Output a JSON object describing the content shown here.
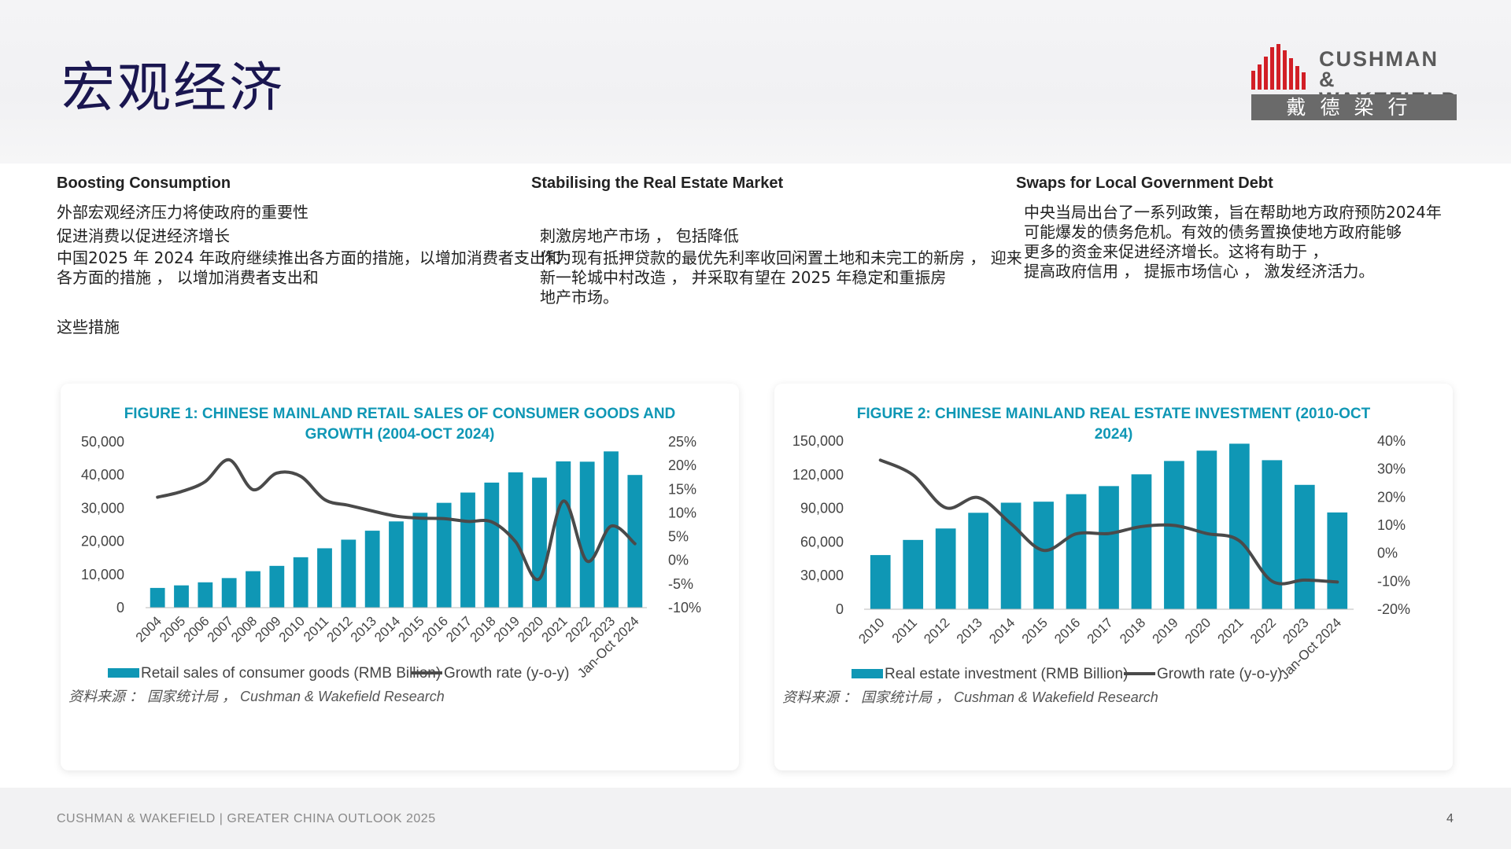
{
  "page": {
    "title": "宏观经济",
    "logo": {
      "line1": "CUSHMAN &",
      "line2": "WAKEFIELD",
      "chinese": "戴德梁行"
    },
    "footer": "CUSHMAN & WAKEFIELD | GREATER CHINA OUTLOOK 2025",
    "page_number": "4"
  },
  "columns": [
    {
      "title": "Boosting Consumption",
      "lines": [
        "外部宏观经济压力将使政府的重要性",
        " 促进消费以促进经济增长",
        "中国2025 年 2024 年政府继续推出各方面的措施，以增加消费者支出和",
        " 各方面的措施 ， 以增加消费者支出和",
        "这些措施"
      ]
    },
    {
      "title": "Stabilising the Real Estate Market",
      "lines": [
        "刺激房地产市场 ， 包括降低",
        "作为现有抵押贷款的最优先利率收回闲置土地和未完工的新房 ， 迎来",
        "新一轮城中村改造 ， 并采取有望在 2025 年稳定和重振房",
        "地产市场。"
      ]
    },
    {
      "title": "Swaps for Local Government Debt",
      "lines": [
        "中央当局出台了一系列政策，旨在帮助地方政府预防2024年",
        "可能爆发的债务危机。有效的债务置换使地方政府能够",
        "更多的资金来促进经济增长。这将有助于 ，",
        "提高政府信用 ， 提振市场信心 ， 激发经济活力。"
      ]
    }
  ],
  "colors": {
    "bar": "#0f97b5",
    "line": "#4a4a4a",
    "title": "#0f97b5",
    "heading": "#1a1650"
  },
  "chart_data": [
    {
      "type": "bar",
      "title_line1": "FIGURE 1: CHINESE MAINLAND RETAIL SALES OF CONSUMER GOODS AND",
      "title_line2": "GROWTH (2004-OCT 2024)",
      "categories": [
        "2004",
        "2005",
        "2006",
        "2007",
        "2008",
        "2009",
        "2010",
        "2011",
        "2012",
        "2013",
        "2014",
        "2015",
        "2016",
        "2017",
        "2018",
        "2019",
        "2020",
        "2021",
        "2022",
        "2023",
        "Jan-Oct 2024"
      ],
      "series": [
        {
          "name": "Retail sales of consumer goods (RMB Billion)",
          "kind": "bar",
          "axis": "left",
          "values": [
            5950,
            6720,
            7640,
            8920,
            11000,
            12600,
            15200,
            17900,
            20500,
            23200,
            26000,
            28600,
            31600,
            34700,
            37700,
            40800,
            39200,
            44100,
            44000,
            47100,
            40000
          ]
        },
        {
          "name": "Growth rate (y-o-y)",
          "kind": "line",
          "axis": "right",
          "values": [
            13.3,
            14.5,
            16.6,
            21.2,
            14.9,
            18.4,
            17.7,
            12.8,
            11.6,
            10.4,
            9.3,
            8.9,
            8.8,
            8.2,
            8.1,
            3.9,
            -3.9,
            12.5,
            -0.2,
            7.2,
            3.5
          ]
        }
      ],
      "yleft": {
        "min": 0,
        "max": 50000,
        "ticks": [
          "0",
          "10,000",
          "20,000",
          "30,000",
          "40,000",
          "50,000"
        ]
      },
      "yright": {
        "min": -10,
        "max": 25,
        "ticks": [
          "-10%",
          "-5%",
          "0%",
          "5%",
          "10%",
          "15%",
          "20%",
          "25%"
        ]
      },
      "legend_placement": "bottom",
      "source": "资料来源 ： 国家统计局 ， Cushman & Wakefield Research"
    },
    {
      "type": "bar",
      "title_line1": "FIGURE 2: CHINESE MAINLAND REAL ESTATE INVESTMENT (2010-OCT",
      "title_line2": "2024)",
      "categories": [
        "2010",
        "2011",
        "2012",
        "2013",
        "2014",
        "2015",
        "2016",
        "2017",
        "2018",
        "2019",
        "2020",
        "2021",
        "2022",
        "2023",
        "Jan-Oct 2024"
      ],
      "series": [
        {
          "name": "Real estate investment (RMB Billion)",
          "kind": "bar",
          "axis": "left",
          "values": [
            48300,
            61800,
            72000,
            86000,
            95000,
            95900,
            102600,
            109800,
            120300,
            132200,
            141400,
            147600,
            132900,
            110900,
            86300
          ]
        },
        {
          "name": "Growth rate (y-o-y)",
          "kind": "line",
          "axis": "right",
          "values": [
            33.2,
            27.9,
            16.2,
            19.8,
            10.5,
            1.0,
            6.9,
            7.0,
            9.5,
            9.9,
            7.0,
            4.4,
            -10.0,
            -9.6,
            -10.3
          ]
        }
      ],
      "yleft": {
        "min": 0,
        "max": 150000,
        "ticks": [
          "0",
          "30,000",
          "60,000",
          "90,000",
          "120,000",
          "150,000"
        ]
      },
      "yright": {
        "min": -20,
        "max": 40,
        "ticks": [
          "-20%",
          "-10%",
          "0%",
          "10%",
          "20%",
          "30%",
          "40%"
        ]
      },
      "legend_placement": "bottom",
      "source": "资料来源 ： 国家统计局 ， Cushman & Wakefield Research"
    }
  ]
}
